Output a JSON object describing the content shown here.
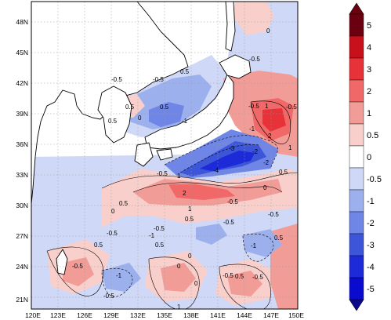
{
  "map": {
    "lat_ticks": [
      "48N",
      "45N",
      "42N",
      "39N",
      "36N",
      "33N",
      "30N",
      "27N",
      "24N",
      "21N"
    ],
    "lon_ticks": [
      "120E",
      "123E",
      "126E",
      "129E",
      "132E",
      "135E",
      "138E",
      "141E",
      "144E",
      "147E",
      "150E"
    ],
    "extent": {
      "lon": [
        120,
        150
      ],
      "lat": [
        20,
        50
      ]
    }
  },
  "colorbar": {
    "levels": [
      "5",
      "4",
      "3",
      "2",
      "1",
      "0.5",
      "0",
      "-0.5",
      "-1",
      "-2",
      "-3",
      "-4",
      "-5"
    ],
    "colors": [
      "#6b0010",
      "#c8101c",
      "#e8323a",
      "#f06868",
      "#f29c98",
      "#f8cfcb",
      "#ffffff",
      "#cfd8f6",
      "#9db0ee",
      "#6f86e6",
      "#3d55d8",
      "#1c2ad8",
      "#0b0bd0"
    ],
    "top_triangle_color": "#6b0010",
    "bottom_triangle_color": "#0a0a8a"
  },
  "contour_labels": [
    {
      "text": "-0.5"
    },
    {
      "text": "0"
    },
    {
      "text": "-0.5"
    },
    {
      "text": "0.5"
    },
    {
      "text": "-0.5"
    },
    {
      "text": "0.5"
    },
    {
      "text": "-1"
    },
    {
      "text": "0.5"
    },
    {
      "text": "0"
    },
    {
      "text": "0.5"
    },
    {
      "text": "-0.5"
    },
    {
      "text": "1"
    },
    {
      "text": "-0.5"
    },
    {
      "text": "-1"
    },
    {
      "text": "2"
    },
    {
      "text": "-3"
    },
    {
      "text": "-2"
    },
    {
      "text": "1"
    },
    {
      "text": "-4"
    },
    {
      "text": "-2"
    },
    {
      "text": "-0.5"
    },
    {
      "text": "1"
    },
    {
      "text": "2"
    },
    {
      "text": "0.5"
    },
    {
      "text": "0"
    },
    {
      "text": "1"
    },
    {
      "text": "-0.5"
    },
    {
      "text": "0.5"
    },
    {
      "text": "-0.5"
    },
    {
      "text": "-0.5"
    },
    {
      "text": "0.5"
    },
    {
      "text": "0"
    },
    {
      "text": "-0.5"
    },
    {
      "text": "-0.5"
    },
    {
      "text": "-1"
    },
    {
      "text": "0.5"
    },
    {
      "text": "0.5"
    },
    {
      "text": "-1"
    },
    {
      "text": "0"
    },
    {
      "text": "0.5"
    },
    {
      "text": "-0.5"
    },
    {
      "text": "-0.5"
    },
    {
      "text": "0"
    },
    {
      "text": "-0.5"
    },
    {
      "text": "-1"
    },
    {
      "text": "0.5"
    },
    {
      "text": "-0.5"
    },
    {
      "text": "0"
    },
    {
      "text": "1"
    }
  ]
}
